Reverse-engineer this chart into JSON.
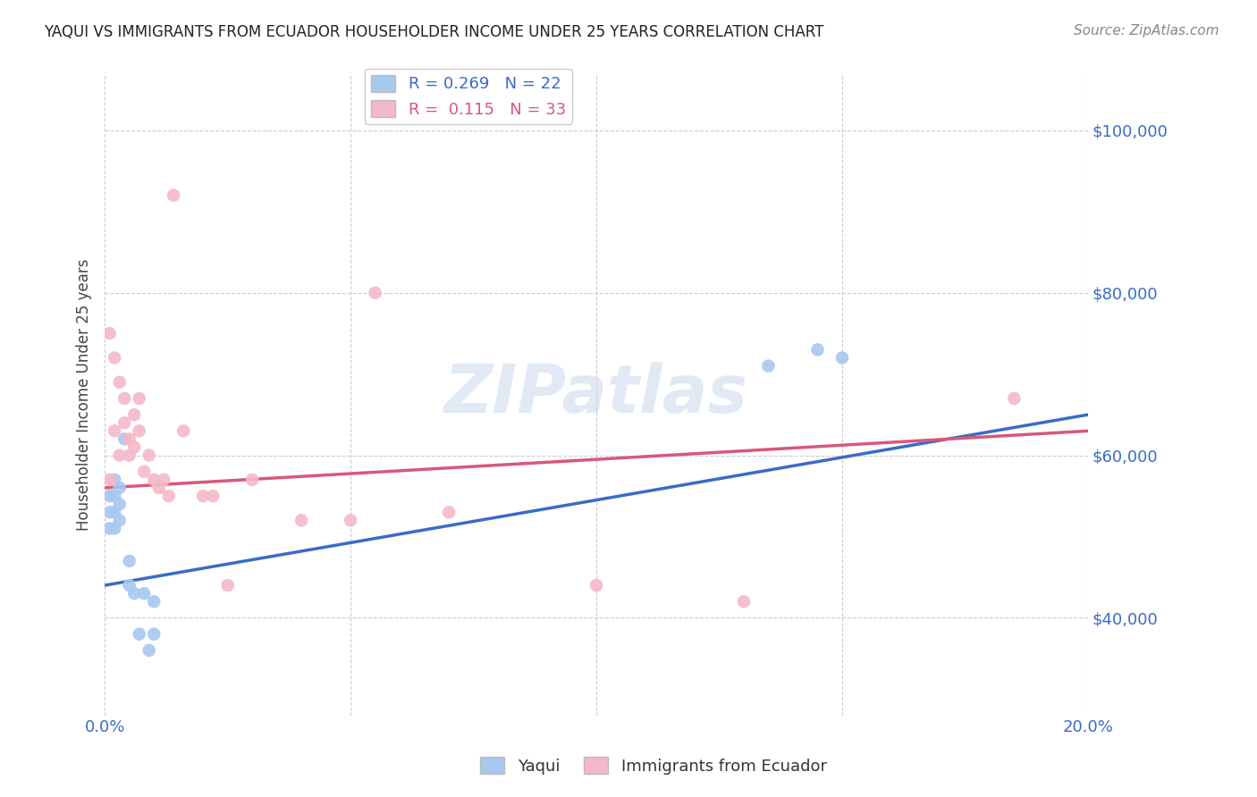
{
  "title": "YAQUI VS IMMIGRANTS FROM ECUADOR HOUSEHOLDER INCOME UNDER 25 YEARS CORRELATION CHART",
  "source": "Source: ZipAtlas.com",
  "ylabel": "Householder Income Under 25 years",
  "xmin": 0.0,
  "xmax": 0.2,
  "ymin": 28000,
  "ymax": 107000,
  "yticks": [
    40000,
    60000,
    80000,
    100000
  ],
  "ytick_labels": [
    "$40,000",
    "$60,000",
    "$80,000",
    "$100,000"
  ],
  "xticks": [
    0.0,
    0.05,
    0.1,
    0.15,
    0.2
  ],
  "xtick_labels": [
    "0.0%",
    "",
    "",
    "",
    "20.0%"
  ],
  "legend_r1": "R = 0.269",
  "legend_n1": "N = 22",
  "legend_r2": "R =  0.115",
  "legend_n2": "N = 33",
  "color_blue": "#A8C8F0",
  "color_pink": "#F5B8C8",
  "line_color_blue": "#3A6BC8",
  "line_color_pink": "#D85878",
  "watermark": "ZIPatlas",
  "background_color": "#FFFFFF",
  "grid_color": "#CCCCCC",
  "blue_line_y0": 44000,
  "blue_line_y1": 65000,
  "pink_line_y0": 56000,
  "pink_line_y1": 63000,
  "yaqui_x": [
    0.001,
    0.001,
    0.001,
    0.002,
    0.002,
    0.002,
    0.002,
    0.003,
    0.003,
    0.003,
    0.004,
    0.005,
    0.005,
    0.006,
    0.007,
    0.008,
    0.009,
    0.01,
    0.01,
    0.135,
    0.145,
    0.15
  ],
  "yaqui_y": [
    55000,
    53000,
    51000,
    57000,
    55000,
    53000,
    51000,
    56000,
    54000,
    52000,
    62000,
    47000,
    44000,
    43000,
    38000,
    43000,
    36000,
    42000,
    38000,
    71000,
    73000,
    72000
  ],
  "ecuador_x": [
    0.001,
    0.001,
    0.002,
    0.002,
    0.003,
    0.003,
    0.004,
    0.004,
    0.005,
    0.005,
    0.006,
    0.006,
    0.007,
    0.007,
    0.008,
    0.009,
    0.01,
    0.011,
    0.012,
    0.013,
    0.014,
    0.016,
    0.02,
    0.022,
    0.025,
    0.03,
    0.04,
    0.05,
    0.055,
    0.07,
    0.1,
    0.13,
    0.185
  ],
  "ecuador_y": [
    75000,
    57000,
    72000,
    63000,
    69000,
    60000,
    67000,
    64000,
    62000,
    60000,
    65000,
    61000,
    67000,
    63000,
    58000,
    60000,
    57000,
    56000,
    57000,
    55000,
    92000,
    63000,
    55000,
    55000,
    44000,
    57000,
    52000,
    52000,
    80000,
    53000,
    44000,
    42000,
    67000
  ]
}
